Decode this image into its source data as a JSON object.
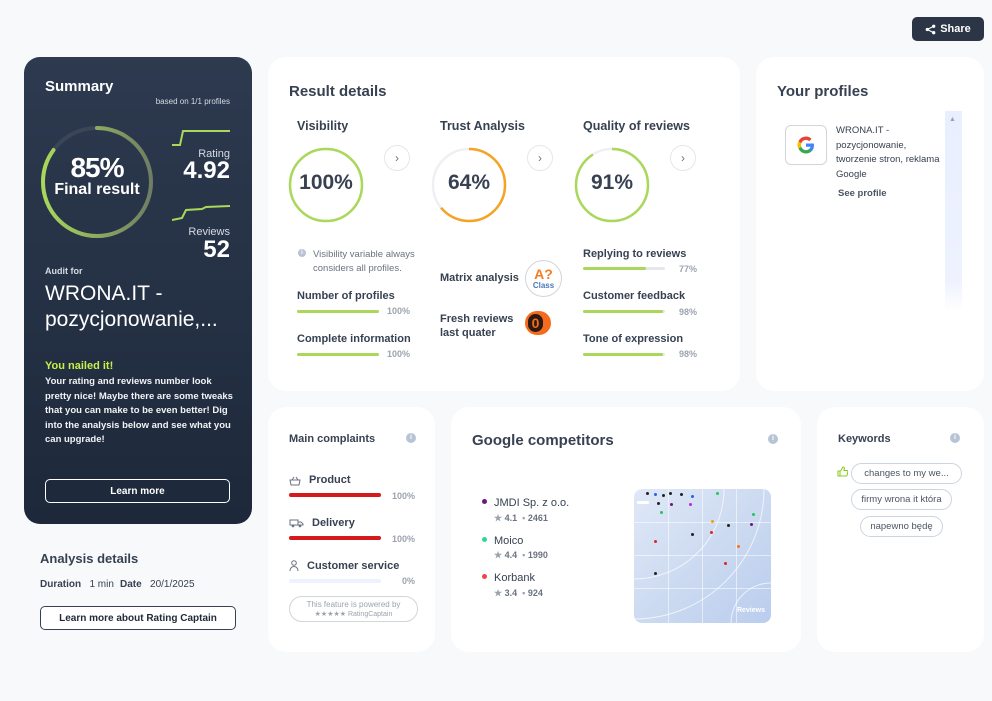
{
  "header": {
    "share_label": "Share",
    "share_icon": "share-icon"
  },
  "summary": {
    "title": "Summary",
    "based_on": "based on 1/1 profiles",
    "final_pct": "85%",
    "final_pct_value": 0.85,
    "final_label": "Final result",
    "rating_label": "Rating",
    "rating_value": "4.92",
    "reviews_label": "Reviews",
    "reviews_value": "52",
    "audit_for": "Audit for",
    "company": "WRONA.IT - pozycjonowanie,...",
    "nailed": "You nailed it!",
    "description": "Your rating and reviews number look pretty nice! Maybe there are some tweaks that you can make to be even better! Dig into the analysis below and see what you can upgrade!",
    "learn_more": "Learn more"
  },
  "analysis": {
    "title": "Analysis details",
    "duration_label": "Duration",
    "duration_value": "1 min",
    "date_label": "Date",
    "date_value": "20/1/2025",
    "rc_button": "Learn more about Rating Captain"
  },
  "result": {
    "title": "Result details",
    "visibility": {
      "title": "Visibility",
      "value": "100%",
      "pct": 1.0,
      "note": "Visibility variable always considers all profiles.",
      "items": [
        {
          "label": "Number of profiles",
          "value": "100%",
          "pct": 1.0
        },
        {
          "label": "Complete information",
          "value": "100%",
          "pct": 1.0
        }
      ]
    },
    "trust": {
      "title": "Trust Analysis",
      "value": "64%",
      "pct": 0.64,
      "matrix_label": "Matrix analysis",
      "matrix_grade": "A?",
      "matrix_class": "Class",
      "fresh_label": "Fresh reviews last quater",
      "fresh_value": "0"
    },
    "quality": {
      "title": "Quality of reviews",
      "value": "91%",
      "pct": 0.91,
      "items": [
        {
          "label": "Replying to reviews",
          "value": "77%",
          "pct": 0.77
        },
        {
          "label": "Customer feedback",
          "value": "98%",
          "pct": 0.98
        },
        {
          "label": "Tone of expression",
          "value": "98%",
          "pct": 0.98
        }
      ]
    }
  },
  "profiles": {
    "title": "Your profiles",
    "items": [
      {
        "name": "WRONA.IT - pozycjonowanie, tworzenie stron, reklama Google",
        "link": "See profile",
        "icon": "google-icon"
      }
    ]
  },
  "complaints": {
    "title": "Main complaints",
    "items": [
      {
        "label": "Product",
        "value": "100%",
        "pct": 1.0,
        "icon": "basket-icon"
      },
      {
        "label": "Delivery",
        "value": "100%",
        "pct": 1.0,
        "icon": "truck-icon"
      },
      {
        "label": "Customer service",
        "value": "0%",
        "pct": 0.0,
        "icon": "person-icon"
      }
    ],
    "powered": "This feature is powered by",
    "powered_brand": "★★★★★ RatingCaptain"
  },
  "competitors": {
    "title": "Google competitors",
    "items": [
      {
        "name": "JMDI Sp. z o.o.",
        "rating": "4.1",
        "reviews": "2461",
        "color": "#6b1a7a"
      },
      {
        "name": "Moico",
        "rating": "4.4",
        "reviews": "1990",
        "color": "#34d399"
      },
      {
        "name": "Korbank",
        "rating": "3.4",
        "reviews": "924",
        "color": "#ef4444"
      }
    ],
    "map_badge": "Reviews"
  },
  "keywords": {
    "title": "Keywords",
    "items": [
      "changes to my we...",
      "firmy wrona it która",
      "napewno będę"
    ]
  },
  "colors": {
    "accent_green": "#a9d85a",
    "orange": "#f6a323",
    "red": "#d41a1a",
    "navy": "#1d283a"
  }
}
